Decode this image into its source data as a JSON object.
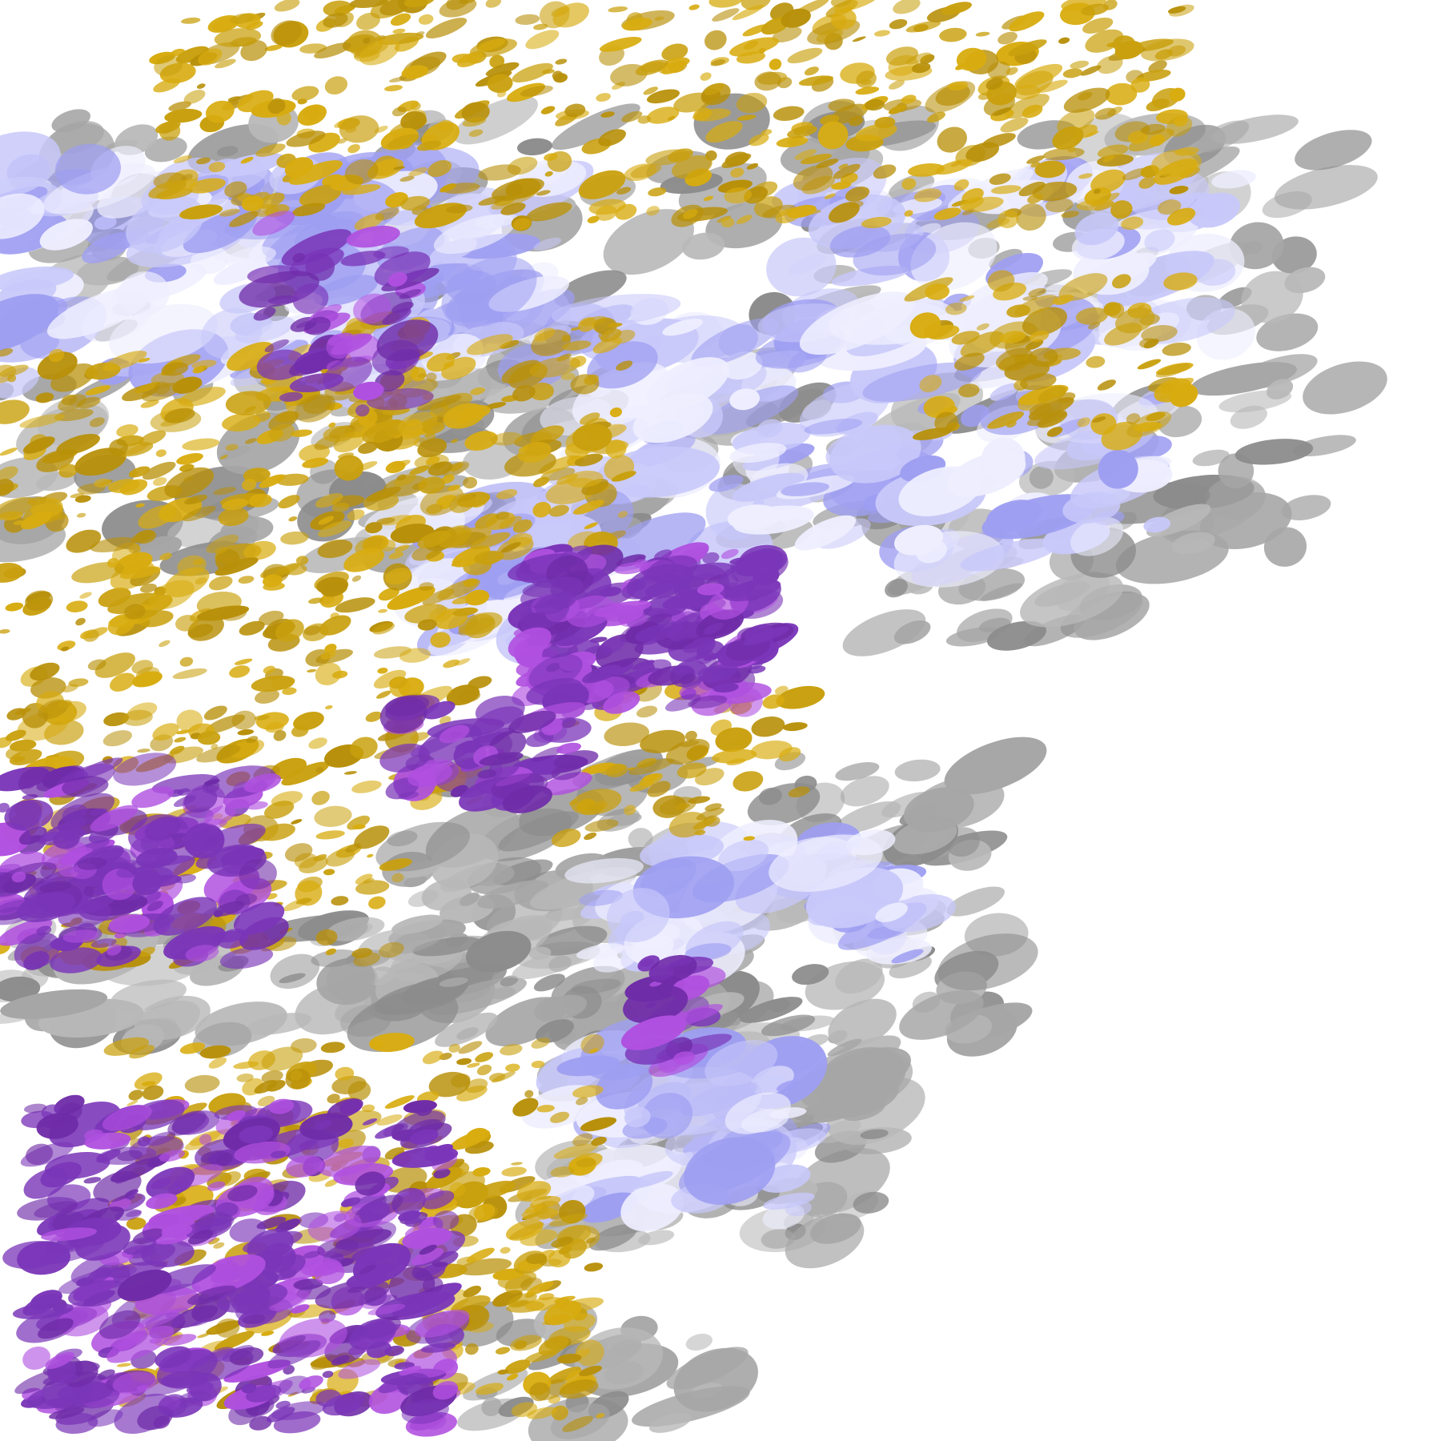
{
  "map": {
    "kind": "classified satellite imagery",
    "background": "#ffffff",
    "palette": {
      "gold": "#c9a00e",
      "purple": "#7a35b8",
      "magenta": "#b050e0",
      "lavender": "#c8c8fa",
      "pale": "#eeeeff",
      "periwinkle": "#9e9ef2",
      "gray": "#a6a6a6",
      "darkgray": "#8c8c8c"
    }
  }
}
